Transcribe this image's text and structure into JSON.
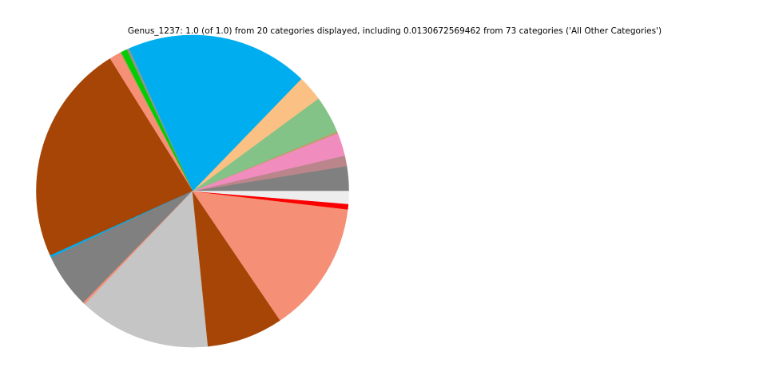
{
  "page": {
    "background_color": "#ffffff"
  },
  "chart_data": {
    "type": "pie",
    "title": "Genus_1237: 1.0 (of 1.0) from 20 categories displayed, including 0.0130672569462 from 73 categories ('All Other Categories')",
    "taxon_level_label": "Genus_1237",
    "total_displayed": "1.0",
    "of_total": "1.0",
    "categories_displayed": 20,
    "all_other_fraction": "0.0130672569462",
    "all_other_source_categories": 73,
    "all_other_label": "All Other Categories",
    "start_angle_deg": 0,
    "direction": "counterclockwise",
    "legend": "none",
    "axis": "none",
    "slices": [
      {
        "id": "slice-01",
        "color": "#808080",
        "fraction": 0.02583
      },
      {
        "id": "slice-02",
        "color": "#BA868C",
        "fraction": 0.01083
      },
      {
        "id": "slice-03",
        "color": "#F08CBE",
        "fraction": 0.02389
      },
      {
        "id": "slice-04",
        "color": "#C69A6A",
        "fraction": 0.00194
      },
      {
        "id": "slice-05",
        "color": "#84C388",
        "fraction": 0.03861
      },
      {
        "id": "slice-06",
        "color": "#FBC083",
        "fraction": 0.02667
      },
      {
        "id": "slice-07",
        "color": "#00AEEF",
        "fraction": 0.18889
      },
      {
        "id": "slice-08",
        "color": "#8F968F",
        "fraction": 0.00278
      },
      {
        "id": "slice-09",
        "color": "#00CE00",
        "fraction": 0.00639
      },
      {
        "id": "slice-10",
        "color": "#C69A6A",
        "fraction": 0.00139
      },
      {
        "id": "slice-11",
        "color": "#F59077",
        "fraction": 0.01167
      },
      {
        "id": "slice-12",
        "color": "#A64506",
        "fraction": 0.22888
      },
      {
        "id": "slice-13",
        "color": "#00AEEF",
        "fraction": 0.00222
      },
      {
        "id": "slice-14",
        "color": "#808080",
        "fraction": 0.05694
      },
      {
        "id": "slice-15",
        "color": "#F59077",
        "fraction": 0.00222
      },
      {
        "id": "slice-16",
        "color": "#C5C5C5",
        "fraction": 0.13667
      },
      {
        "id": "slice-17",
        "color": "#A64506",
        "fraction": 0.07889
      },
      {
        "id": "slice-18",
        "color": "#F59077",
        "fraction": 0.13667
      },
      {
        "id": "slice-19",
        "color": "#FB0000",
        "fraction": 0.00556
      },
      {
        "id": "slice-20",
        "color": "#EDEDED",
        "fraction": 0.01306
      }
    ]
  }
}
